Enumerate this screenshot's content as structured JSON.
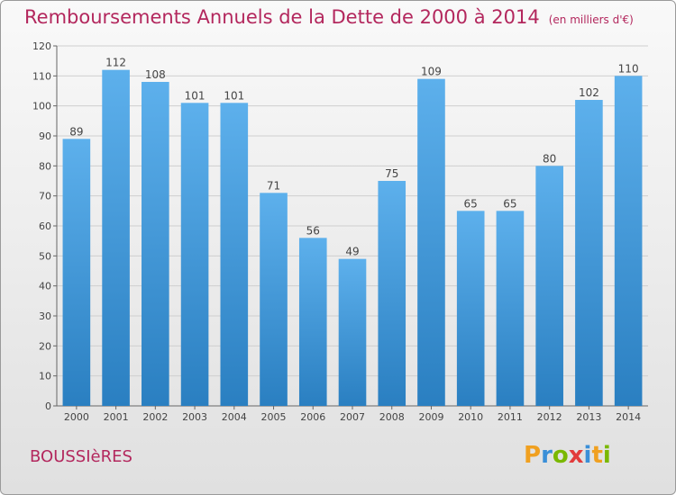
{
  "title": "Remboursements Annuels de la Dette de 2000 à 2014",
  "subtitle": "(en milliers d'€)",
  "commune": "BOUSSIèRES",
  "logo": {
    "letters": [
      "P",
      "r",
      "o",
      "x",
      "i",
      "t",
      "i"
    ],
    "colors": [
      "#f0a020",
      "#3a8fd8",
      "#7ab800",
      "#e23b3b",
      "#3a8fd8",
      "#f0a020",
      "#7ab800"
    ]
  },
  "chart_data": {
    "type": "bar",
    "categories": [
      "2000",
      "2001",
      "2002",
      "2003",
      "2004",
      "2005",
      "2006",
      "2007",
      "2008",
      "2009",
      "2010",
      "2011",
      "2012",
      "2013",
      "2014"
    ],
    "values": [
      89,
      112,
      108,
      101,
      101,
      71,
      56,
      49,
      75,
      109,
      65,
      65,
      80,
      102,
      110
    ],
    "ylim": [
      0,
      120
    ],
    "yticks": [
      0,
      10,
      20,
      30,
      40,
      50,
      60,
      70,
      80,
      90,
      100,
      110,
      120
    ],
    "grid": true,
    "bar_color": "#3f9ee0"
  }
}
